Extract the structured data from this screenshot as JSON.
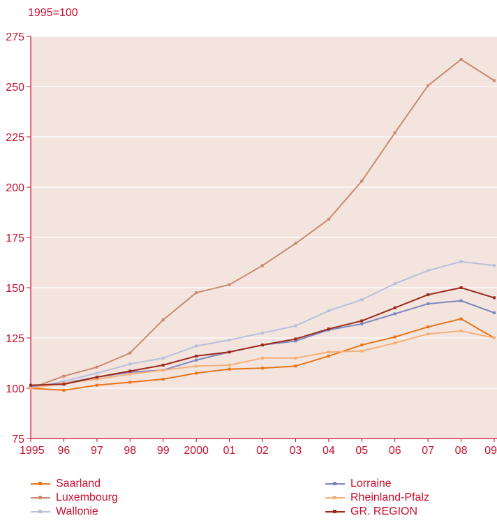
{
  "chart_data": {
    "type": "line",
    "unit_label": "1995=100",
    "x": [
      "1995",
      "96",
      "97",
      "98",
      "99",
      "2000",
      "01",
      "02",
      "03",
      "04",
      "05",
      "06",
      "07",
      "08",
      "09"
    ],
    "ylim": [
      75,
      275
    ],
    "yticks": [
      75,
      100,
      125,
      150,
      175,
      200,
      225,
      250,
      275
    ],
    "grid": true,
    "background": "#f3e4de",
    "series": [
      {
        "name": "Saarland",
        "color": "#e8751a",
        "values": [
          100,
          99,
          101.5,
          103,
          104.5,
          107.5,
          109.5,
          110,
          111,
          116,
          121.5,
          125.5,
          130.5,
          134.5,
          125
        ]
      },
      {
        "name": "Luxembourg",
        "color": "#c98a72",
        "values": [
          100,
          106,
          110.5,
          117.5,
          134,
          147.5,
          151.5,
          161,
          172,
          184,
          203,
          227,
          250.5,
          263.5,
          253
        ]
      },
      {
        "name": "Wallonie",
        "color": "#b9bfdc",
        "values": [
          100,
          103.5,
          107.5,
          112,
          115,
          121,
          124,
          127.5,
          131,
          138.5,
          144,
          152,
          158.5,
          163,
          161
        ]
      },
      {
        "name": "Lorraine",
        "color": "#7d86bf",
        "values": [
          101,
          102.5,
          105.5,
          108,
          109,
          114,
          118,
          121.5,
          123.5,
          129,
          132,
          137,
          142,
          143.5,
          137.5
        ]
      },
      {
        "name": "Rheinland-Pfalz",
        "color": "#f5b07a",
        "values": [
          100,
          102.5,
          104.5,
          107,
          109,
          111,
          111.5,
          115,
          115,
          118,
          118.5,
          122.5,
          127,
          128.5,
          125
        ]
      },
      {
        "name": "GR. REGION",
        "color": "#9b2a1e",
        "values": [
          101.5,
          102,
          105.5,
          108.5,
          111.5,
          116,
          118,
          121.5,
          124.5,
          129.5,
          133.5,
          140,
          146.5,
          150,
          145
        ]
      }
    ]
  }
}
